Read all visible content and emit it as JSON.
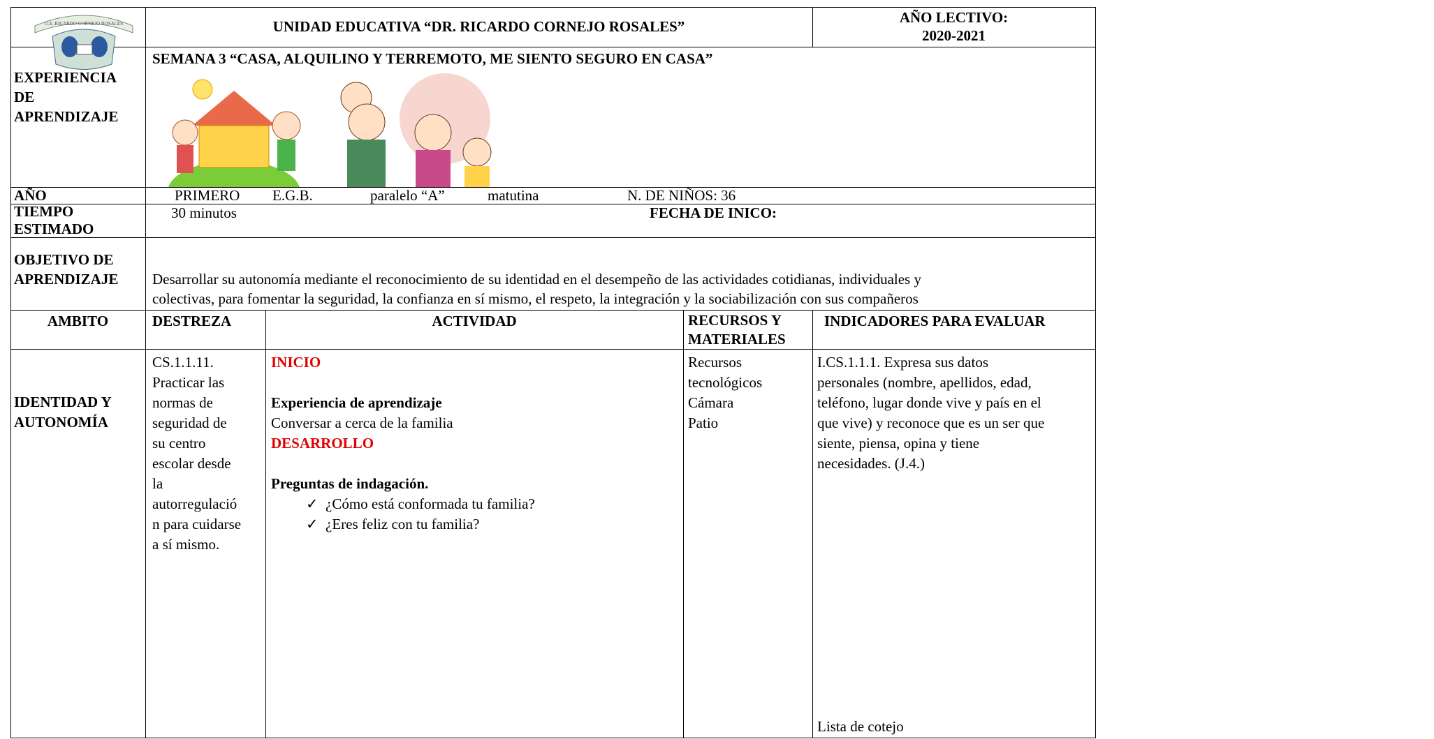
{
  "header": {
    "logo_text": "U.E. RICARDO CORNEJO ROSALES",
    "school": "UNIDAD EDUCATIVA “DR. RICARDO CORNEJO ROSALES”",
    "year_label": "AÑO LECTIVO:",
    "year": "2020-2021"
  },
  "experiencia": {
    "label": "EXPERIENCIA DE APRENDIZAJE",
    "title": "SEMANA 3 “CASA, ALQUILINO Y TERREMOTO, ME SIENTO SEGURO EN CASA”"
  },
  "anio": {
    "label": "AÑO",
    "grade": "PRIMERO",
    "level": "E.G.B.",
    "section": "paralelo “A”",
    "shift": "matutina",
    "children": "N. DE NIÑOS: 36"
  },
  "tiempo": {
    "label": "TIEMPO ESTIMADO",
    "value": "30 minutos",
    "fecha": "FECHA DE INICO:"
  },
  "objetivo": {
    "label": "OBJETIVO DE APRENDIZAJE",
    "lines": [
      "Desarrollar su autonomía mediante el reconocimiento de su identidad en el desempeño de las actividades cotidianas, individuales y",
      "colectivas, para fomentar la seguridad, la confianza en sí mismo, el respeto, la integración y la sociabilización con sus compañeros"
    ]
  },
  "table": {
    "headers": [
      "AMBITO",
      "DESTREZA",
      "ACTIVIDAD",
      "RECURSOS Y MATERIALES",
      "INDICADORES PARA EVALUAR"
    ],
    "ambito": "IDENTIDAD Y AUTONOMÍA",
    "destreza": [
      "CS.1.1.11.",
      "Practicar las",
      "normas de",
      "seguridad de",
      "su centro",
      "escolar desde",
      "la",
      "autorregulació",
      "n para cuidarse",
      "a sí mismo."
    ],
    "actividad": {
      "inicio": "INICIO",
      "experiencia_title": "Experiencia de aprendizaje",
      "experiencia_text": "Conversar a cerca de la familia",
      "desarrollo": "DESARROLLO",
      "preguntas_title": "Preguntas de indagación.",
      "preguntas": [
        "¿Cómo está conformada tu familia?",
        "¿Eres feliz con tu familia?"
      ]
    },
    "recursos": [
      "Recursos",
      "tecnológicos",
      "Cámara",
      "Patio"
    ],
    "indicadores": [
      "I.CS.1.1.1. Expresa sus datos",
      "personales (nombre, apellidos, edad,",
      "teléfono, lugar donde vive y país en el",
      "que vive) y reconoce que es un ser que",
      "siente, piensa, opina y tiene",
      "necesidades. (J.4.)"
    ],
    "evaluacion": "Lista de cotejo"
  }
}
